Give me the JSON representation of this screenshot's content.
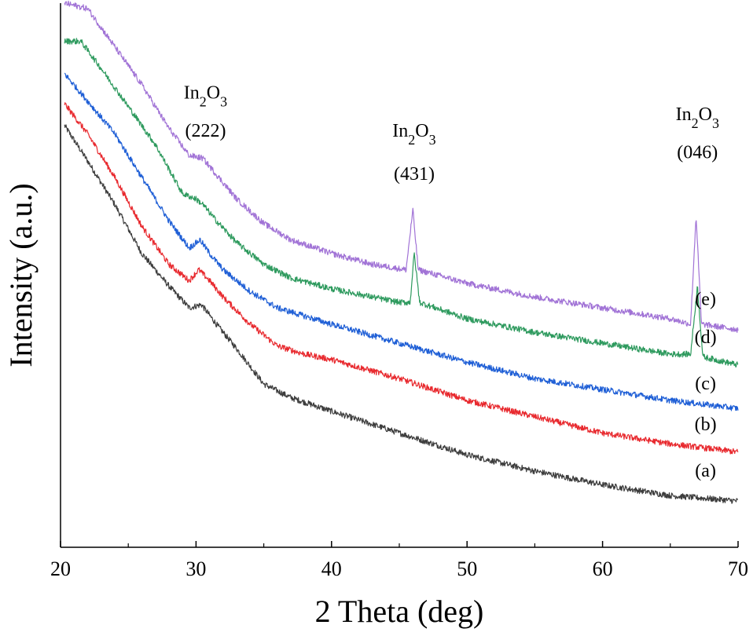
{
  "chart_data": {
    "type": "line",
    "title": "",
    "xlabel": "2 Theta (deg)",
    "ylabel": "Intensity (a.u.)",
    "xlim": [
      20,
      70
    ],
    "ylim": [
      0,
      100
    ],
    "x_ticks": [
      20,
      30,
      40,
      50,
      60,
      70
    ],
    "y_ticks_labeled": false,
    "grid": false,
    "legend": "none",
    "series": [
      {
        "name": "(a)",
        "color": "#3d3d3d",
        "points": [
          [
            20.3,
            77.5
          ],
          [
            22,
            71
          ],
          [
            24,
            63
          ],
          [
            26,
            54
          ],
          [
            28,
            48
          ],
          [
            29.5,
            44
          ],
          [
            30.4,
            44.6
          ],
          [
            31.5,
            41
          ],
          [
            33,
            36.5
          ],
          [
            35,
            30
          ],
          [
            37,
            27.5
          ],
          [
            40,
            25
          ],
          [
            45,
            21
          ],
          [
            50,
            17
          ],
          [
            55,
            14
          ],
          [
            60,
            11.5
          ],
          [
            65,
            9.5
          ],
          [
            70,
            8.5
          ]
        ]
      },
      {
        "name": "(b)",
        "color": "#e8292e",
        "points": [
          [
            20.3,
            81.5
          ],
          [
            22,
            76
          ],
          [
            24,
            68
          ],
          [
            26,
            59
          ],
          [
            28,
            52
          ],
          [
            29.5,
            49
          ],
          [
            30.2,
            51
          ],
          [
            31,
            49
          ],
          [
            32,
            46
          ],
          [
            34,
            41
          ],
          [
            36,
            37
          ],
          [
            38,
            35.5
          ],
          [
            40,
            34.5
          ],
          [
            45,
            31
          ],
          [
            50,
            27
          ],
          [
            55,
            24
          ],
          [
            60,
            21
          ],
          [
            65,
            19
          ],
          [
            70,
            17.5
          ]
        ]
      },
      {
        "name": "(c)",
        "color": "#1f5fd6",
        "points": [
          [
            20.3,
            87
          ],
          [
            22,
            82
          ],
          [
            24,
            76
          ],
          [
            26,
            68
          ],
          [
            28,
            60
          ],
          [
            29.5,
            55
          ],
          [
            30.3,
            56.5
          ],
          [
            31,
            54
          ],
          [
            32,
            51
          ],
          [
            34,
            47
          ],
          [
            36,
            44
          ],
          [
            38,
            42.5
          ],
          [
            40,
            41
          ],
          [
            45,
            37.5
          ],
          [
            50,
            34
          ],
          [
            55,
            31
          ],
          [
            60,
            29
          ],
          [
            65,
            27
          ],
          [
            70,
            25.5
          ]
        ]
      },
      {
        "name": "(d)",
        "color": "#2e9a5e",
        "points": [
          [
            20.3,
            93
          ],
          [
            21.5,
            93
          ],
          [
            23,
            88
          ],
          [
            25,
            81
          ],
          [
            27,
            74
          ],
          [
            29,
            65
          ],
          [
            30,
            64
          ],
          [
            30.5,
            63
          ],
          [
            31.5,
            60
          ],
          [
            33,
            56
          ],
          [
            35,
            52
          ],
          [
            37,
            49.5
          ],
          [
            40,
            47.5
          ],
          [
            45,
            45
          ],
          [
            45.8,
            45
          ],
          [
            46.1,
            54
          ],
          [
            46.5,
            45
          ],
          [
            50,
            42
          ],
          [
            55,
            39.5
          ],
          [
            60,
            37.5
          ],
          [
            65,
            35.5
          ],
          [
            66.5,
            35.5
          ],
          [
            67,
            48
          ],
          [
            67.4,
            35
          ],
          [
            70,
            33.5
          ]
        ]
      },
      {
        "name": "(e)",
        "color": "#a173d6",
        "points": [
          [
            20.3,
            100
          ],
          [
            22,
            99
          ],
          [
            24,
            92
          ],
          [
            26,
            85
          ],
          [
            28,
            77
          ],
          [
            29.5,
            72
          ],
          [
            30.5,
            71.5
          ],
          [
            31.5,
            68.5
          ],
          [
            33,
            64
          ],
          [
            35,
            59.5
          ],
          [
            37,
            56.5
          ],
          [
            40,
            54
          ],
          [
            43,
            52
          ],
          [
            45.5,
            51
          ],
          [
            46,
            62
          ],
          [
            46.4,
            51
          ],
          [
            50,
            48.5
          ],
          [
            55,
            46
          ],
          [
            60,
            44
          ],
          [
            65,
            42
          ],
          [
            66.5,
            41
          ],
          [
            66.9,
            61
          ],
          [
            67.3,
            41
          ],
          [
            70,
            40
          ]
        ]
      }
    ],
    "series_labels": [
      {
        "text": "(a)",
        "x": 67.6,
        "y": 13
      },
      {
        "text": "(b)",
        "x": 67.6,
        "y": 21.5
      },
      {
        "text": "(c)",
        "x": 67.6,
        "y": 29
      },
      {
        "text": "(d)",
        "x": 67.6,
        "y": 37.5
      },
      {
        "text": "(e)",
        "x": 67.6,
        "y": 44.5
      }
    ],
    "annotations": [
      {
        "formula": [
          "In",
          "2",
          "O",
          "3"
        ],
        "hkl": "(222)",
        "x": 30.7,
        "y_formula": 82.5,
        "y_hkl": 75.5
      },
      {
        "formula": [
          "In",
          "2",
          "O",
          "3"
        ],
        "hkl": "(431)",
        "x": 46.1,
        "y_formula": 75.5,
        "y_hkl": 67.5
      },
      {
        "formula": [
          "In",
          "2",
          "O",
          "3"
        ],
        "hkl": "(046)",
        "x": 67.0,
        "y_formula": 78.5,
        "y_hkl": 71.5
      }
    ]
  }
}
